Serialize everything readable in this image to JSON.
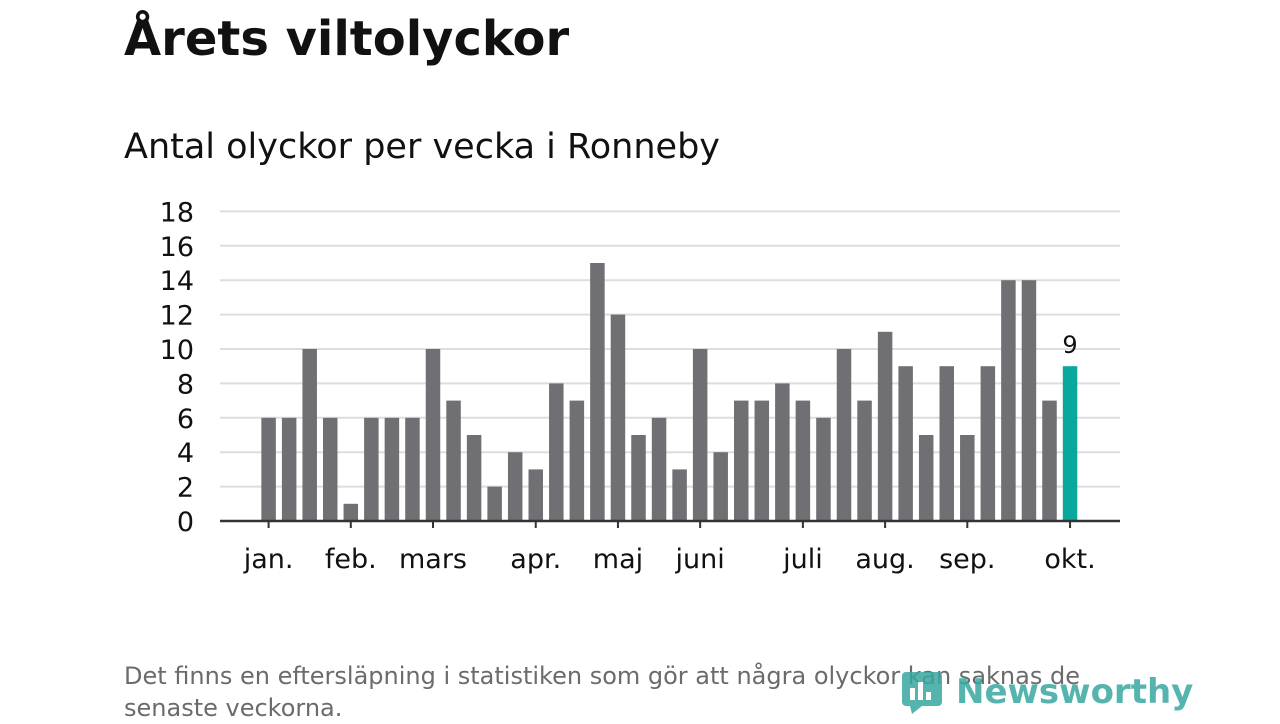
{
  "title": "Årets viltolyckor",
  "subtitle": "Antal olyckor per vecka i Ronneby",
  "footnote": "Det finns en eftersläpning i statistiken som gör att några olyckor kan saknas de senaste veckorna.",
  "logo": {
    "text": "Newsworthy",
    "icon": "newsworthy-logo-icon"
  },
  "colors": {
    "bar": "#706f73",
    "highlight": "#0aa79c",
    "grid": "#dddddd",
    "axis": "#333333",
    "text": "#111111"
  },
  "chart_data": {
    "type": "bar",
    "xlabel": "",
    "ylabel": "",
    "ylim": [
      0,
      18
    ],
    "yticks": [
      0,
      2,
      4,
      6,
      8,
      10,
      12,
      14,
      16,
      18
    ],
    "grid": true,
    "weeks": [
      1,
      2,
      3,
      4,
      5,
      6,
      7,
      8,
      9,
      10,
      11,
      12,
      13,
      14,
      15,
      16,
      17,
      18,
      19,
      20,
      21,
      22,
      23,
      24,
      25,
      26,
      27,
      28,
      29,
      30,
      31,
      32,
      33,
      34,
      35,
      36,
      37,
      38,
      39,
      40
    ],
    "values": [
      6,
      6,
      10,
      6,
      1,
      6,
      6,
      6,
      10,
      7,
      5,
      2,
      4,
      3,
      8,
      7,
      15,
      12,
      5,
      6,
      3,
      10,
      4,
      7,
      7,
      8,
      7,
      6,
      10,
      7,
      11,
      9,
      5,
      9,
      5,
      9,
      14,
      14,
      7,
      9
    ],
    "highlight_index": 39,
    "highlight_label": "9",
    "month_ticks": [
      {
        "label": "jan.",
        "week": 1
      },
      {
        "label": "feb.",
        "week": 5
      },
      {
        "label": "mars",
        "week": 9
      },
      {
        "label": "apr.",
        "week": 14
      },
      {
        "label": "maj",
        "week": 18
      },
      {
        "label": "juni",
        "week": 22
      },
      {
        "label": "juli",
        "week": 27
      },
      {
        "label": "aug.",
        "week": 31
      },
      {
        "label": "sep.",
        "week": 35
      },
      {
        "label": "okt.",
        "week": 40
      }
    ]
  }
}
